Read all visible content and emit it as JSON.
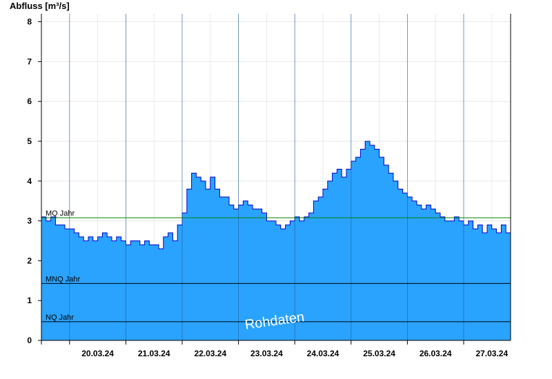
{
  "chart_data": {
    "type": "area",
    "ylabel": "Abfluss [m³/s]",
    "xlabel": "",
    "ylim": [
      0,
      8.2
    ],
    "xlim": [
      "2024-03-19T12:00",
      "2024-03-27T20:00"
    ],
    "yticks": [
      0,
      1,
      2,
      3,
      4,
      5,
      6,
      7,
      8
    ],
    "x_tick_dates": [
      "2024-03-20T00:00",
      "2024-03-21T00:00",
      "2024-03-22T00:00",
      "2024-03-23T00:00",
      "2024-03-24T00:00",
      "2024-03-25T00:00",
      "2024-03-26T00:00",
      "2024-03-27T00:00"
    ],
    "x_ticklabels": [
      "20.03.24",
      "21.03.24",
      "22.03.24",
      "23.03.24",
      "24.03.24",
      "25.03.24",
      "26.03.24",
      "27.03.24"
    ],
    "grid": true,
    "colors": {
      "fill": "#2aa3ff",
      "line": "#0000cc",
      "mq_line": "#008000",
      "ref_line": "#000000",
      "grid": "#e8e8e8",
      "day_line": "#1f5fa0"
    },
    "reference_lines": [
      {
        "label": "MQ Jahr",
        "value": 3.08
      },
      {
        "label": "MNQ Jahr",
        "value": 1.43
      },
      {
        "label": "NQ Jahr",
        "value": 0.47
      }
    ],
    "watermark": "Rohdaten",
    "series": [
      {
        "values": [
          [
            "2024-03-19T12:00",
            3.1
          ],
          [
            "2024-03-19T14:00",
            3.0
          ],
          [
            "2024-03-19T16:00",
            3.1
          ],
          [
            "2024-03-19T18:00",
            2.9
          ],
          [
            "2024-03-19T20:00",
            2.9
          ],
          [
            "2024-03-19T22:00",
            2.8
          ],
          [
            "2024-03-20T00:00",
            2.8
          ],
          [
            "2024-03-20T02:00",
            2.7
          ],
          [
            "2024-03-20T04:00",
            2.6
          ],
          [
            "2024-03-20T06:00",
            2.5
          ],
          [
            "2024-03-20T08:00",
            2.6
          ],
          [
            "2024-03-20T10:00",
            2.5
          ],
          [
            "2024-03-20T12:00",
            2.6
          ],
          [
            "2024-03-20T14:00",
            2.7
          ],
          [
            "2024-03-20T16:00",
            2.6
          ],
          [
            "2024-03-20T18:00",
            2.5
          ],
          [
            "2024-03-20T20:00",
            2.6
          ],
          [
            "2024-03-20T22:00",
            2.5
          ],
          [
            "2024-03-21T00:00",
            2.4
          ],
          [
            "2024-03-21T02:00",
            2.5
          ],
          [
            "2024-03-21T04:00",
            2.5
          ],
          [
            "2024-03-21T06:00",
            2.4
          ],
          [
            "2024-03-21T08:00",
            2.5
          ],
          [
            "2024-03-21T10:00",
            2.4
          ],
          [
            "2024-03-21T12:00",
            2.4
          ],
          [
            "2024-03-21T14:00",
            2.3
          ],
          [
            "2024-03-21T16:00",
            2.6
          ],
          [
            "2024-03-21T18:00",
            2.7
          ],
          [
            "2024-03-21T20:00",
            2.5
          ],
          [
            "2024-03-21T22:00",
            2.9
          ],
          [
            "2024-03-22T00:00",
            3.2
          ],
          [
            "2024-03-22T02:00",
            3.8
          ],
          [
            "2024-03-22T04:00",
            4.2
          ],
          [
            "2024-03-22T06:00",
            4.1
          ],
          [
            "2024-03-22T08:00",
            4.0
          ],
          [
            "2024-03-22T10:00",
            3.8
          ],
          [
            "2024-03-22T12:00",
            4.1
          ],
          [
            "2024-03-22T14:00",
            3.8
          ],
          [
            "2024-03-22T16:00",
            3.6
          ],
          [
            "2024-03-22T18:00",
            3.6
          ],
          [
            "2024-03-22T20:00",
            3.4
          ],
          [
            "2024-03-22T22:00",
            3.3
          ],
          [
            "2024-03-23T00:00",
            3.4
          ],
          [
            "2024-03-23T02:00",
            3.5
          ],
          [
            "2024-03-23T04:00",
            3.4
          ],
          [
            "2024-03-23T06:00",
            3.3
          ],
          [
            "2024-03-23T08:00",
            3.3
          ],
          [
            "2024-03-23T10:00",
            3.2
          ],
          [
            "2024-03-23T12:00",
            3.0
          ],
          [
            "2024-03-23T14:00",
            3.0
          ],
          [
            "2024-03-23T16:00",
            2.9
          ],
          [
            "2024-03-23T18:00",
            2.8
          ],
          [
            "2024-03-23T20:00",
            2.9
          ],
          [
            "2024-03-23T22:00",
            3.0
          ],
          [
            "2024-03-24T00:00",
            3.1
          ],
          [
            "2024-03-24T02:00",
            3.0
          ],
          [
            "2024-03-24T04:00",
            3.1
          ],
          [
            "2024-03-24T06:00",
            3.2
          ],
          [
            "2024-03-24T08:00",
            3.5
          ],
          [
            "2024-03-24T10:00",
            3.6
          ],
          [
            "2024-03-24T12:00",
            3.8
          ],
          [
            "2024-03-24T14:00",
            4.0
          ],
          [
            "2024-03-24T16:00",
            4.2
          ],
          [
            "2024-03-24T18:00",
            4.3
          ],
          [
            "2024-03-24T20:00",
            4.1
          ],
          [
            "2024-03-24T22:00",
            4.3
          ],
          [
            "2024-03-25T00:00",
            4.5
          ],
          [
            "2024-03-25T02:00",
            4.6
          ],
          [
            "2024-03-25T04:00",
            4.8
          ],
          [
            "2024-03-25T06:00",
            5.0
          ],
          [
            "2024-03-25T08:00",
            4.9
          ],
          [
            "2024-03-25T10:00",
            4.8
          ],
          [
            "2024-03-25T12:00",
            4.6
          ],
          [
            "2024-03-25T14:00",
            4.4
          ],
          [
            "2024-03-25T16:00",
            4.2
          ],
          [
            "2024-03-25T18:00",
            4.0
          ],
          [
            "2024-03-25T20:00",
            3.8
          ],
          [
            "2024-03-25T22:00",
            3.7
          ],
          [
            "2024-03-26T00:00",
            3.6
          ],
          [
            "2024-03-26T02:00",
            3.5
          ],
          [
            "2024-03-26T04:00",
            3.4
          ],
          [
            "2024-03-26T06:00",
            3.3
          ],
          [
            "2024-03-26T08:00",
            3.4
          ],
          [
            "2024-03-26T10:00",
            3.3
          ],
          [
            "2024-03-26T12:00",
            3.2
          ],
          [
            "2024-03-26T14:00",
            3.1
          ],
          [
            "2024-03-26T16:00",
            3.0
          ],
          [
            "2024-03-26T18:00",
            3.0
          ],
          [
            "2024-03-26T20:00",
            3.1
          ],
          [
            "2024-03-26T22:00",
            3.0
          ],
          [
            "2024-03-27T00:00",
            2.9
          ],
          [
            "2024-03-27T02:00",
            3.0
          ],
          [
            "2024-03-27T04:00",
            2.8
          ],
          [
            "2024-03-27T06:00",
            2.9
          ],
          [
            "2024-03-27T08:00",
            2.7
          ],
          [
            "2024-03-27T10:00",
            2.9
          ],
          [
            "2024-03-27T12:00",
            2.8
          ],
          [
            "2024-03-27T14:00",
            2.7
          ],
          [
            "2024-03-27T16:00",
            2.9
          ],
          [
            "2024-03-27T18:00",
            2.7
          ],
          [
            "2024-03-27T20:00",
            3.1
          ]
        ]
      }
    ]
  }
}
